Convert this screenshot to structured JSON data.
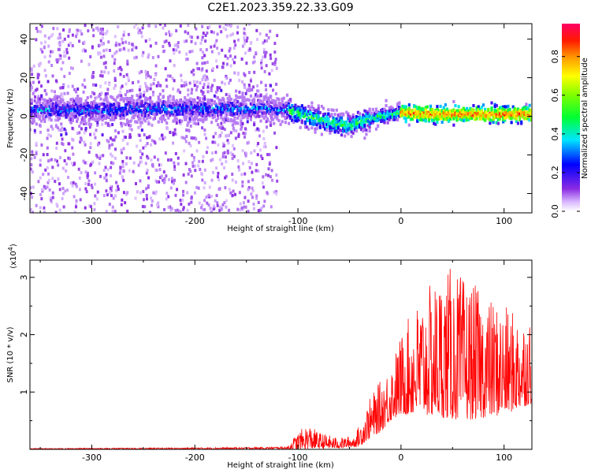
{
  "chart_data": [
    {
      "type": "heatmap",
      "title": "C2E1.2023.359.22.33.G09",
      "xlabel": "Height of straight line (km)",
      "ylabel": "Frequency (Hz)",
      "xlim": [
        -360,
        127
      ],
      "ylim": [
        -50,
        48
      ],
      "x_ticks": [
        -300,
        -200,
        -100,
        0,
        100
      ],
      "x_tick_labels": [
        "-300",
        "-200",
        "-100",
        "0",
        "100"
      ],
      "y_ticks": [
        -40,
        -20,
        0,
        20,
        40
      ],
      "y_tick_labels": [
        "-40",
        "-20",
        "0",
        "20",
        "40"
      ],
      "colorbar": {
        "label": "Normalized spectral amplitude",
        "range": [
          0.0,
          0.97
        ],
        "ticks": [
          0.0,
          0.2,
          0.4,
          0.6,
          0.8
        ],
        "tick_labels": [
          "0.0",
          "0.2",
          "0.4",
          "0.6",
          "0.8"
        ]
      },
      "ridge_center_freq_hz": [
        [
          -360,
          3
        ],
        [
          -130,
          4
        ],
        [
          -110,
          3
        ],
        [
          -90,
          0
        ],
        [
          -70,
          -3
        ],
        [
          -50,
          -5
        ],
        [
          -35,
          -2
        ],
        [
          -20,
          0
        ],
        [
          0,
          2
        ],
        [
          30,
          1
        ],
        [
          127,
          1
        ]
      ]
    },
    {
      "type": "line",
      "xlabel": "Height of straight line (km)",
      "ylabel": "SNR (10 * v/v)",
      "y_scale_label": "(x10",
      "y_scale_exponent": "4",
      "xlim": [
        -360,
        127
      ],
      "ylim": [
        0,
        3.3
      ],
      "x_ticks": [
        -300,
        -200,
        -100,
        0,
        100
      ],
      "x_tick_labels": [
        "-300",
        "-200",
        "-100",
        "0",
        "100"
      ],
      "y_ticks": [
        1,
        2,
        3
      ],
      "y_tick_labels": [
        "1",
        "2",
        "3"
      ],
      "series": [
        {
          "name": "SNR",
          "color": "#ff0000",
          "envelope": [
            [
              -360,
              0.03
            ],
            [
              -250,
              0.04
            ],
            [
              -150,
              0.06
            ],
            [
              -110,
              0.08
            ],
            [
              -100,
              0.3
            ],
            [
              -90,
              0.45
            ],
            [
              -80,
              0.3
            ],
            [
              -60,
              0.2
            ],
            [
              -45,
              0.25
            ],
            [
              -40,
              0.45
            ],
            [
              -30,
              0.9
            ],
            [
              -20,
              1.2
            ],
            [
              -10,
              1.5
            ],
            [
              0,
              2.0
            ],
            [
              10,
              2.4
            ],
            [
              20,
              2.7
            ],
            [
              30,
              2.9
            ],
            [
              40,
              3.1
            ],
            [
              50,
              3.2
            ],
            [
              60,
              3.0
            ],
            [
              70,
              2.9
            ],
            [
              80,
              2.7
            ],
            [
              90,
              2.6
            ],
            [
              100,
              2.5
            ],
            [
              110,
              2.4
            ],
            [
              127,
              2.3
            ]
          ],
          "floor": [
            [
              -360,
              0.0
            ],
            [
              -110,
              0.0
            ],
            [
              -60,
              0.02
            ],
            [
              -40,
              0.05
            ],
            [
              -30,
              0.2
            ],
            [
              -20,
              0.3
            ],
            [
              -10,
              0.5
            ],
            [
              0,
              0.6
            ],
            [
              20,
              0.6
            ],
            [
              60,
              0.5
            ],
            [
              100,
              0.6
            ],
            [
              127,
              0.8
            ]
          ]
        }
      ]
    }
  ]
}
